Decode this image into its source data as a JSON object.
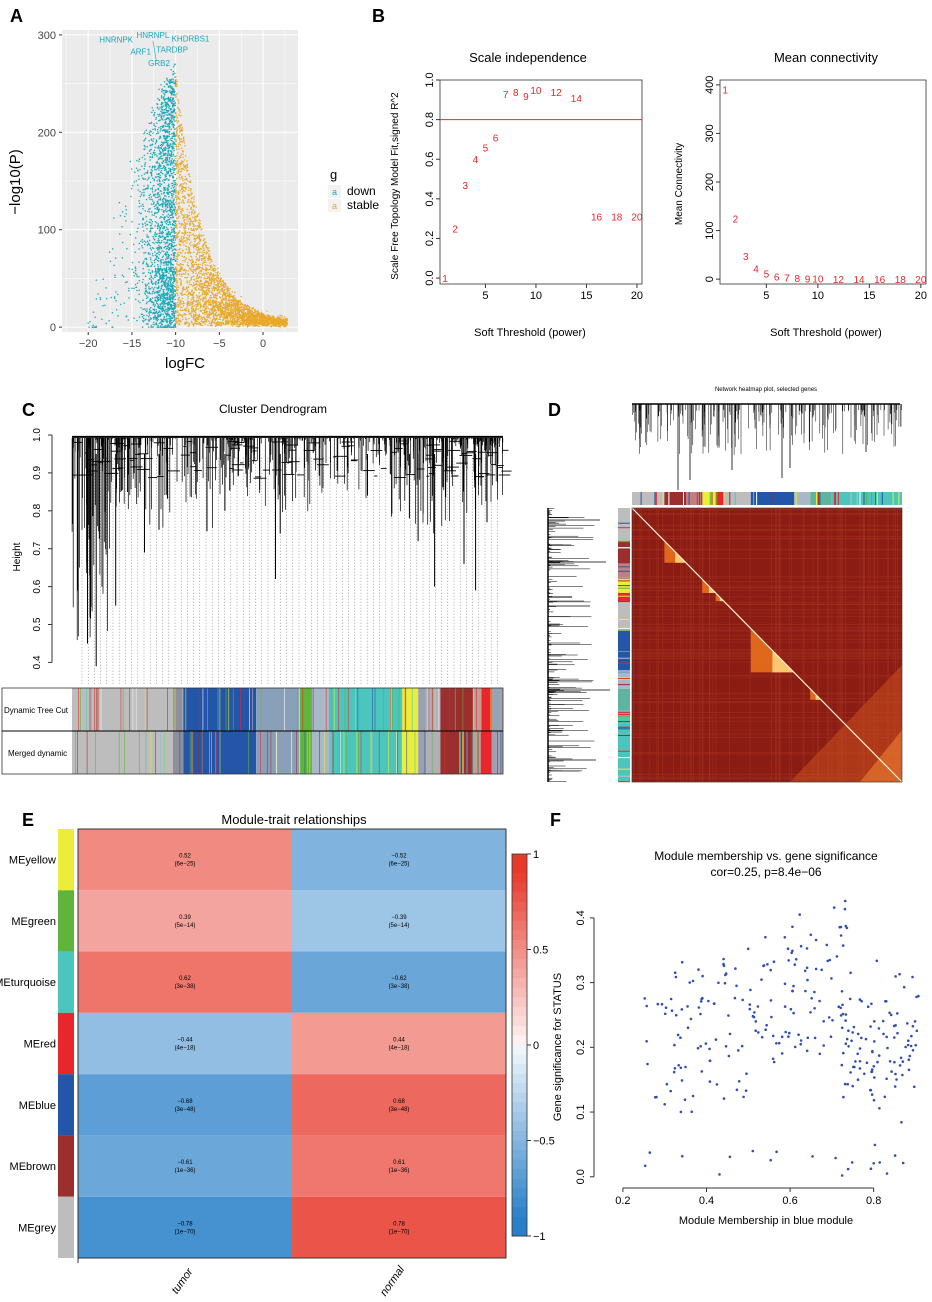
{
  "panels": {
    "A": {
      "label": "A",
      "chart_data": {
        "type": "scatter",
        "title": "",
        "xlabel": "logFC",
        "ylabel": "−log10(P)",
        "xlim": [
          -23,
          4
        ],
        "ylim": [
          -5,
          305
        ],
        "xticks": [
          -20,
          -15,
          -10,
          -5,
          0
        ],
        "xtick_labels": [
          "−20",
          "−15",
          "−10",
          "−5",
          "0"
        ],
        "yticks": [
          0,
          100,
          200,
          300
        ],
        "ytick_labels": [
          "0",
          "100",
          "200",
          "300"
        ],
        "legend": {
          "title": "g",
          "entries": [
            {
              "label": "down",
              "color": "#1aa8b8",
              "glyph": "a"
            },
            {
              "label": "stable",
              "color": "#e8a92a",
              "glyph": "a"
            }
          ]
        },
        "threshold_logFC": -10,
        "annotations": [
          {
            "text": "HNRNPL",
            "x": -12.6,
            "y": 297
          },
          {
            "text": "HNRNPK",
            "x": -16.8,
            "y": 292
          },
          {
            "text": "KHDRBS1",
            "x": -8.3,
            "y": 293
          },
          {
            "text": "TARDBP",
            "x": -10.4,
            "y": 282
          },
          {
            "text": "ARF1",
            "x": -14.0,
            "y": 280
          },
          {
            "text": "GRB2",
            "x": -11.9,
            "y": 268
          }
        ],
        "point_color_down": "#1aa8b8",
        "point_color_stable": "#e8a92a"
      }
    },
    "B": {
      "label": "B",
      "charts": [
        {
          "chart_data": {
            "type": "scatter",
            "title": "Scale independence",
            "xlabel": "Soft Threshold (power)",
            "ylabel": "Scale Free Topology Model Fit,signed R^2",
            "xlim": [
              0.5,
              20.5
            ],
            "ylim": [
              -0.03,
              1.0
            ],
            "xticks": [
              5,
              10,
              15,
              20
            ],
            "yticks": [
              0.0,
              0.2,
              0.4,
              0.6,
              0.8,
              1.0
            ],
            "ytick_labels": [
              "0.0",
              "0.2",
              "0.4",
              "0.6",
              "0.8",
              "1.0"
            ],
            "hline": 0.8,
            "x": [
              1,
              2,
              3,
              4,
              5,
              6,
              7,
              8,
              9,
              10,
              12,
              14,
              16,
              18,
              20
            ],
            "y": [
              0.0,
              0.25,
              0.47,
              0.6,
              0.66,
              0.71,
              0.93,
              0.94,
              0.92,
              0.95,
              0.94,
              0.91,
              0.31,
              0.31,
              0.31
            ],
            "point_labels": [
              "1",
              "2",
              "3",
              "4",
              "5",
              "6",
              "7",
              "8",
              "9",
              "10",
              "12",
              "14",
              "16",
              "18",
              "20"
            ]
          }
        },
        {
          "chart_data": {
            "type": "scatter",
            "title": "Mean connectivity",
            "xlabel": "Soft Threshold (power)",
            "ylabel": "Mean Connectivity",
            "xlim": [
              0.5,
              20.5
            ],
            "ylim": [
              -10,
              410
            ],
            "xticks": [
              5,
              10,
              15,
              20
            ],
            "yticks": [
              0,
              100,
              200,
              300,
              400
            ],
            "ytick_labels": [
              "0",
              "100",
              "200",
              "300",
              "400"
            ],
            "x": [
              1,
              2,
              3,
              4,
              5,
              6,
              7,
              8,
              9,
              10,
              12,
              14,
              16,
              18,
              20
            ],
            "y": [
              390,
              125,
              48,
              22,
              12,
              5,
              3,
              2,
              1,
              1,
              0,
              0,
              0,
              0,
              0
            ],
            "point_labels": [
              "1",
              "2",
              "3",
              "4",
              "5",
              "6",
              "7",
              "8",
              "9",
              "10",
              "12",
              "14",
              "16",
              "18",
              "20"
            ]
          }
        }
      ]
    },
    "C": {
      "label": "C",
      "chart_data": {
        "type": "dendrogram",
        "title": "Cluster Dendrogram",
        "ylabel": "Height",
        "ylim": [
          0.38,
          1.0
        ],
        "yticks": [
          0.4,
          0.5,
          0.6,
          0.7,
          0.8,
          0.9,
          1.0
        ],
        "ytick_labels": [
          "0.4",
          "0.5",
          "0.6",
          "0.7",
          "0.8",
          "0.9",
          "1.0"
        ],
        "row_labels": [
          "Dynamic Tree Cut",
          "Merged dynamic"
        ]
      }
    },
    "D": {
      "label": "D",
      "chart_data": {
        "type": "heatmap",
        "title": "Network heatmap plot, selected genes"
      }
    },
    "E": {
      "label": "E",
      "chart_data": {
        "type": "heatmap",
        "title": "Module-trait relationships",
        "columns": [
          "tumor",
          "normal"
        ],
        "rows": [
          "MEyellow",
          "MEgreen",
          "MEturquoise",
          "MEred",
          "MEblue",
          "MEbrown",
          "MEgrey"
        ],
        "row_colors": [
          "#ecec3a",
          "#5fb43c",
          "#4cc6bd",
          "#e8262b",
          "#2355a8",
          "#9a2f2e",
          "#bdbdbd"
        ],
        "values": [
          [
            0.52,
            -0.52
          ],
          [
            0.39,
            -0.39
          ],
          [
            0.62,
            -0.62
          ],
          [
            -0.44,
            0.44
          ],
          [
            -0.68,
            0.68
          ],
          [
            -0.61,
            0.61
          ],
          [
            -0.78,
            0.78
          ]
        ],
        "cell_labels": [
          [
            "0.52",
            "−0.52"
          ],
          [
            "0.39",
            "−0.39"
          ],
          [
            "0.62",
            "−0.62"
          ],
          [
            "−0.44",
            "0.44"
          ],
          [
            "−0.68",
            "0.68"
          ],
          [
            "−0.61",
            "0.61"
          ],
          [
            "−0.78",
            "0.78"
          ]
        ],
        "pvalues": [
          [
            "(6e−25)",
            "(6e−25)"
          ],
          [
            "(5e−14)",
            "(5e−14)"
          ],
          [
            "(3e−38)",
            "(3e−38)"
          ],
          [
            "(4e−18)",
            "(4e−18)"
          ],
          [
            "(3e−48)",
            "(3e−48)"
          ],
          [
            "(1e−36)",
            "(1e−36)"
          ],
          [
            "(1e−70)",
            "(1e−70)"
          ]
        ],
        "colorbar_range": [
          -1,
          1
        ],
        "colorbar_ticks": [
          -1,
          -0.5,
          0,
          0.5,
          1
        ],
        "colorbar_tick_labels": [
          "−1",
          "−0.5",
          "0",
          "0.5",
          "1"
        ],
        "colors": {
          "neg": "#2a80c8",
          "mid": "#ffffff",
          "pos": "#e83a2c"
        }
      }
    },
    "F": {
      "label": "F",
      "chart_data": {
        "type": "scatter",
        "title": "Module membership vs. gene significance",
        "subtitle": "cor=0.25, p=8.4e−06",
        "xlabel": "Module Membership in blue module",
        "ylabel": "Gene significance for STATUS",
        "xlim": [
          0.15,
          0.93
        ],
        "ylim": [
          -0.005,
          0.44
        ],
        "xticks": [
          0.2,
          0.4,
          0.6,
          0.8
        ],
        "xtick_labels": [
          "0.2",
          "0.4",
          "0.6",
          "0.8"
        ],
        "yticks": [
          0.0,
          0.1,
          0.2,
          0.3,
          0.4
        ],
        "ytick_labels": [
          "0.0",
          "0.1",
          "0.2",
          "0.3",
          "0.4"
        ],
        "point_color": "#2f4fb0",
        "n_points_approx": 300
      }
    }
  }
}
